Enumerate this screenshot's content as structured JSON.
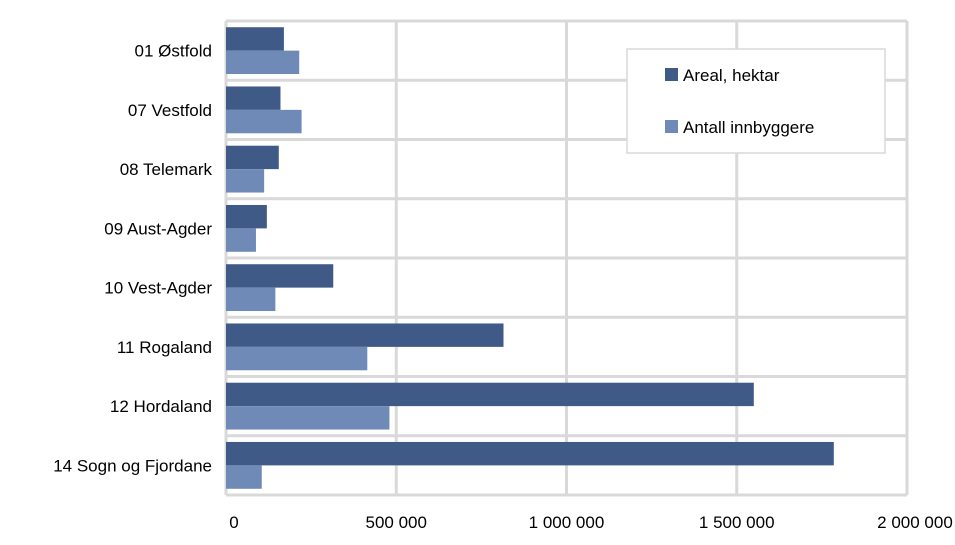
{
  "chart_data": {
    "type": "bar",
    "orientation": "horizontal",
    "categories": [
      "01 Østfold",
      "07 Vestfold",
      "08 Telemark",
      "09 Aust-Agder",
      "10 Vest-Agder",
      "11 Rogaland",
      "12 Hordaland",
      "14 Sogn og Fjordane"
    ],
    "series": [
      {
        "name": "Areal, hektar",
        "color": "#3F5A86",
        "values": [
          170000,
          160000,
          155000,
          120000,
          315000,
          815000,
          1550000,
          1785000
        ]
      },
      {
        "name": "Antall innbyggere",
        "color": "#6F8AB7",
        "values": [
          215000,
          222000,
          112000,
          88000,
          145000,
          415000,
          480000,
          105000
        ]
      }
    ],
    "x_ticks": [
      "0",
      "500 000",
      "1 000 000",
      "1 500 000",
      "2 000 000"
    ],
    "x_tick_values": [
      0,
      500000,
      1000000,
      1500000,
      2000000
    ],
    "xlim": [
      0,
      2000000
    ],
    "grid": true,
    "legend_position": "top-right",
    "plot_background": "#FFFFFF",
    "grid_color": "#D9D9D9",
    "frame_color": "#D9D9D9"
  }
}
